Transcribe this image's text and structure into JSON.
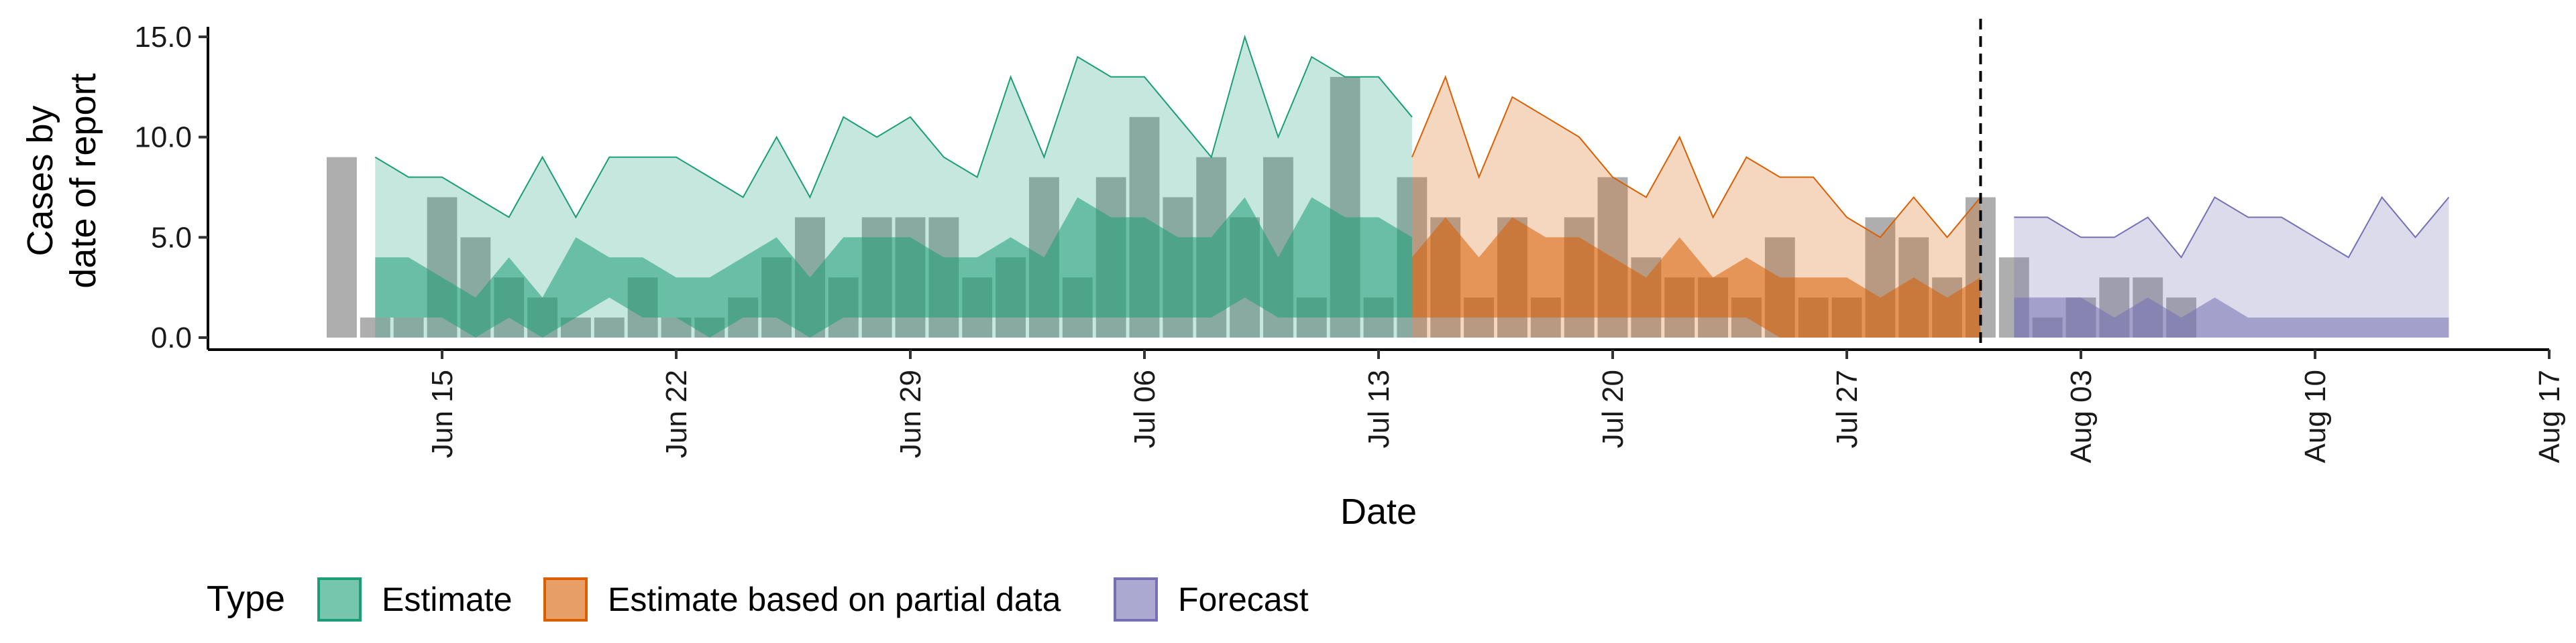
{
  "chart_data": {
    "type": "area",
    "xlabel": "Date",
    "ylabel": [
      "Cases by",
      "date of report"
    ],
    "x_axis": {
      "ticks": [
        "2020-06-15",
        "2020-06-22",
        "2020-06-29",
        "2020-07-06",
        "2020-07-13",
        "2020-07-20",
        "2020-07-27",
        "2020-08-03",
        "2020-08-10",
        "2020-08-17"
      ],
      "tick_labels": [
        "Jun 15",
        "Jun 22",
        "Jun 29",
        "Jul 06",
        "Jul 13",
        "Jul 20",
        "Jul 27",
        "Aug 03",
        "Aug 10",
        "Aug 17"
      ],
      "range": [
        "2020-06-08",
        "2020-08-17"
      ]
    },
    "y_axis": {
      "ticks": [
        0,
        5,
        10,
        15
      ],
      "tick_labels": [
        "0.0",
        "5.0",
        "10.0",
        "15.0"
      ],
      "range": [
        -0.6,
        15.5
      ]
    },
    "grid": false,
    "forecast_start": "2020-07-31",
    "legend": {
      "title": "Type",
      "position": "bottom-left",
      "items": [
        {
          "key": "estimate",
          "label": "Estimate"
        },
        {
          "key": "partial",
          "label": "Estimate based on partial data"
        },
        {
          "key": "forecast",
          "label": "Forecast"
        }
      ]
    },
    "colors": {
      "estimate": "#1b9e77",
      "partial": "#d95f02",
      "forecast": "#7570b3",
      "bars": "#a0a0a0"
    },
    "reported_cases": {
      "start_date": "2020-06-12",
      "values": [
        9,
        1,
        1,
        7,
        5,
        3,
        2,
        1,
        1,
        3,
        1,
        1,
        2,
        4,
        6,
        3,
        6,
        6,
        6,
        3,
        4,
        8,
        3,
        8,
        11,
        7,
        9,
        6,
        9,
        2,
        13,
        2,
        8,
        6,
        2,
        6,
        2,
        6,
        8,
        4,
        3,
        3,
        2,
        5,
        2,
        2,
        6,
        5,
        3,
        7,
        4,
        1,
        2,
        3,
        3,
        2
      ]
    },
    "series": [
      {
        "key": "estimate",
        "start_date": "2020-06-13",
        "outer_upper": [
          9,
          8,
          8,
          7,
          6,
          9,
          6,
          9,
          9,
          9,
          8,
          7,
          10,
          7,
          11,
          10,
          11,
          9,
          8,
          13,
          9,
          14,
          13,
          13,
          11,
          9,
          15,
          10,
          14,
          13,
          13,
          11
        ],
        "inner_upper": [
          4,
          4,
          3,
          2,
          4,
          2,
          5,
          4,
          4,
          3,
          3,
          4,
          5,
          3,
          5,
          5,
          5,
          4,
          4,
          5,
          4,
          7,
          6,
          6,
          5,
          5,
          7,
          4,
          7,
          6,
          6,
          5
        ],
        "inner_lower": [
          1,
          1,
          1,
          0,
          1,
          0,
          1,
          2,
          1,
          1,
          0,
          1,
          1,
          0,
          1,
          1,
          1,
          1,
          1,
          1,
          1,
          1,
          1,
          1,
          1,
          1,
          2,
          1,
          1,
          1,
          1,
          1
        ],
        "outer_lower": [
          0,
          0,
          0,
          0,
          0,
          0,
          0,
          0,
          0,
          0,
          0,
          0,
          0,
          0,
          0,
          0,
          0,
          0,
          0,
          0,
          0,
          0,
          0,
          0,
          0,
          0,
          0,
          0,
          0,
          0,
          0,
          0
        ]
      },
      {
        "key": "partial",
        "start_date": "2020-07-14",
        "outer_upper": [
          9,
          13,
          8,
          12,
          11,
          10,
          8,
          7,
          10,
          6,
          9,
          8,
          8,
          6,
          5,
          7,
          5,
          7
        ],
        "inner_upper": [
          4,
          6,
          4,
          6,
          5,
          5,
          4,
          3,
          5,
          3,
          4,
          3,
          3,
          3,
          2,
          3,
          2,
          3
        ],
        "inner_lower": [
          1,
          1,
          1,
          1,
          1,
          1,
          1,
          1,
          1,
          1,
          1,
          0,
          0,
          0,
          0,
          0,
          0,
          0
        ],
        "outer_lower": [
          0,
          0,
          0,
          0,
          0,
          0,
          0,
          0,
          0,
          0,
          0,
          0,
          0,
          0,
          0,
          0,
          0,
          0
        ]
      },
      {
        "key": "forecast",
        "start_date": "2020-08-01",
        "outer_upper": [
          6,
          6,
          5,
          5,
          6,
          4,
          7,
          6,
          6,
          5,
          4,
          7,
          5,
          7
        ],
        "inner_upper": [
          2,
          2,
          2,
          1,
          2,
          1,
          2,
          1,
          1,
          1,
          1,
          1,
          1,
          1
        ],
        "inner_lower": [
          0,
          0,
          0,
          0,
          0,
          0,
          0,
          0,
          0,
          0,
          0,
          0,
          0,
          0
        ],
        "outer_lower": [
          0,
          0,
          0,
          0,
          0,
          0,
          0,
          0,
          0,
          0,
          0,
          0,
          0,
          0
        ]
      }
    ]
  }
}
